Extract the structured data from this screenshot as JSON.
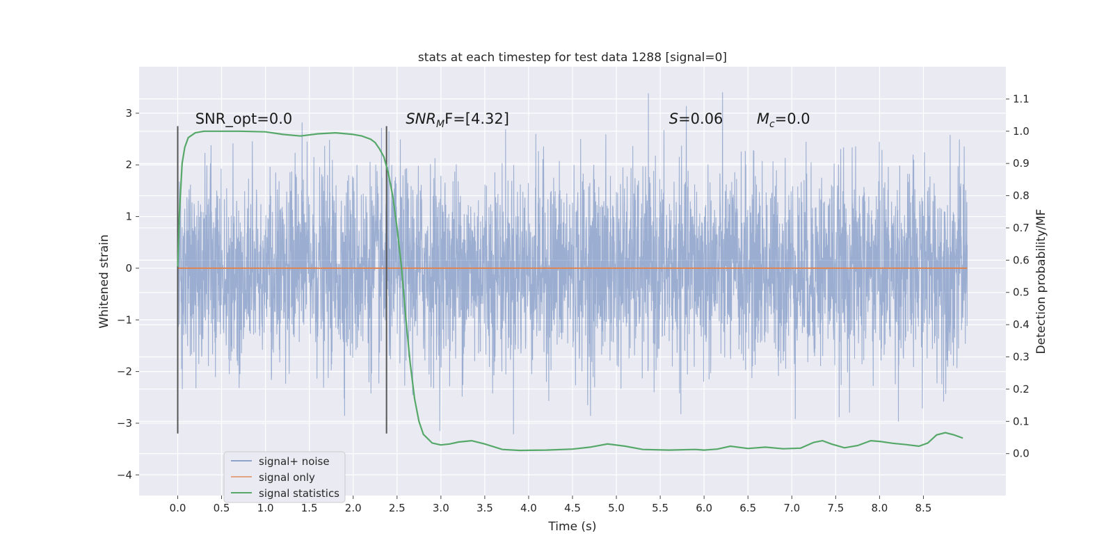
{
  "chart_data": {
    "type": "line",
    "title": "stats at each timestep for test data 1288 [signal=0]",
    "xlabel": "Time (s)",
    "ylabel_left": "Whitened strain",
    "ylabel_right": "Detection probability/MF",
    "xlim": [
      -0.44,
      9.44
    ],
    "ylim_left": [
      -4.4,
      3.9
    ],
    "ylim_right": [
      -0.13,
      1.2
    ],
    "x_ticks": [
      "0.0",
      "0.5",
      "1.0",
      "1.5",
      "2.0",
      "2.5",
      "3.0",
      "3.5",
      "4.0",
      "4.5",
      "5.0",
      "5.5",
      "6.0",
      "6.5",
      "7.0",
      "7.5",
      "8.0",
      "8.5"
    ],
    "y_ticks_left": [
      "−4",
      "−3",
      "−2",
      "−1",
      "0",
      "1",
      "2",
      "3"
    ],
    "y_ticks_right": [
      "0.0",
      "0.1",
      "0.2",
      "0.3",
      "0.4",
      "0.5",
      "0.6",
      "0.7",
      "0.8",
      "0.9",
      "1.0",
      "1.1"
    ],
    "grid": true,
    "legend_position": "lower-left",
    "colors": {
      "background": "#eaeaf2",
      "grid": "#ffffff",
      "noise": "#4c72b0",
      "signal_only": "#dd8452",
      "statistics": "#55a868",
      "markers": "#555555"
    },
    "series": [
      {
        "name": "signal+ noise",
        "axis": "left",
        "description_values": "dense noise trace from t=0 to t=9.0 s",
        "time_range": [
          0.0,
          9.0
        ],
        "bulk_range": [
          -1.5,
          1.6
        ],
        "peak_range": [
          -4.0,
          3.6
        ]
      },
      {
        "name": "signal only",
        "axis": "left",
        "x": [
          0.0,
          9.0
        ],
        "y": [
          0.0,
          0.0
        ]
      },
      {
        "name": "signal statistics",
        "axis": "right",
        "x": [
          0.0,
          0.02,
          0.05,
          0.08,
          0.12,
          0.2,
          0.3,
          0.5,
          0.7,
          1.0,
          1.2,
          1.4,
          1.6,
          1.8,
          2.0,
          2.1,
          2.2,
          2.25,
          2.3,
          2.35,
          2.4,
          2.45,
          2.5,
          2.55,
          2.6,
          2.65,
          2.7,
          2.75,
          2.8,
          2.9,
          3.0,
          3.1,
          3.2,
          3.35,
          3.5,
          3.7,
          3.9,
          4.2,
          4.5,
          4.7,
          4.9,
          5.1,
          5.3,
          5.6,
          5.9,
          6.0,
          6.15,
          6.3,
          6.5,
          6.7,
          6.9,
          7.1,
          7.25,
          7.35,
          7.45,
          7.6,
          7.75,
          7.9,
          8.0,
          8.15,
          8.3,
          8.45,
          8.55,
          8.65,
          8.75,
          8.85,
          8.95
        ],
        "y": [
          0.58,
          0.75,
          0.9,
          0.95,
          0.98,
          0.995,
          1.0,
          1.0,
          1.0,
          0.998,
          0.99,
          0.985,
          0.992,
          0.995,
          0.99,
          0.985,
          0.975,
          0.965,
          0.945,
          0.92,
          0.87,
          0.8,
          0.7,
          0.58,
          0.42,
          0.28,
          0.17,
          0.1,
          0.06,
          0.033,
          0.027,
          0.03,
          0.036,
          0.04,
          0.03,
          0.013,
          0.01,
          0.011,
          0.014,
          0.02,
          0.03,
          0.023,
          0.013,
          0.011,
          0.013,
          0.011,
          0.014,
          0.023,
          0.016,
          0.02,
          0.015,
          0.017,
          0.035,
          0.04,
          0.03,
          0.018,
          0.025,
          0.04,
          0.038,
          0.032,
          0.028,
          0.023,
          0.033,
          0.058,
          0.065,
          0.058,
          0.048
        ]
      }
    ],
    "vertical_markers": [
      {
        "x": 0.0,
        "y_range": [
          -3.2,
          2.75
        ]
      },
      {
        "x": 2.38,
        "y_range": [
          -3.2,
          2.75
        ]
      }
    ],
    "annotations": [
      {
        "text": "SNR_opt=0.0",
        "x": 0.2,
        "y": 2.8
      },
      {
        "text": "SNR",
        "sub": "M",
        "suffix": "F=[4.32]",
        "italic": true,
        "x": 2.6,
        "y": 2.8
      },
      {
        "text": "S",
        "suffix": "=0.06",
        "italic": true,
        "x": 5.6,
        "y": 2.8
      },
      {
        "text": "M",
        "sub": "c",
        "suffix": "=0.0",
        "italic": true,
        "x": 6.6,
        "y": 2.8
      }
    ]
  }
}
